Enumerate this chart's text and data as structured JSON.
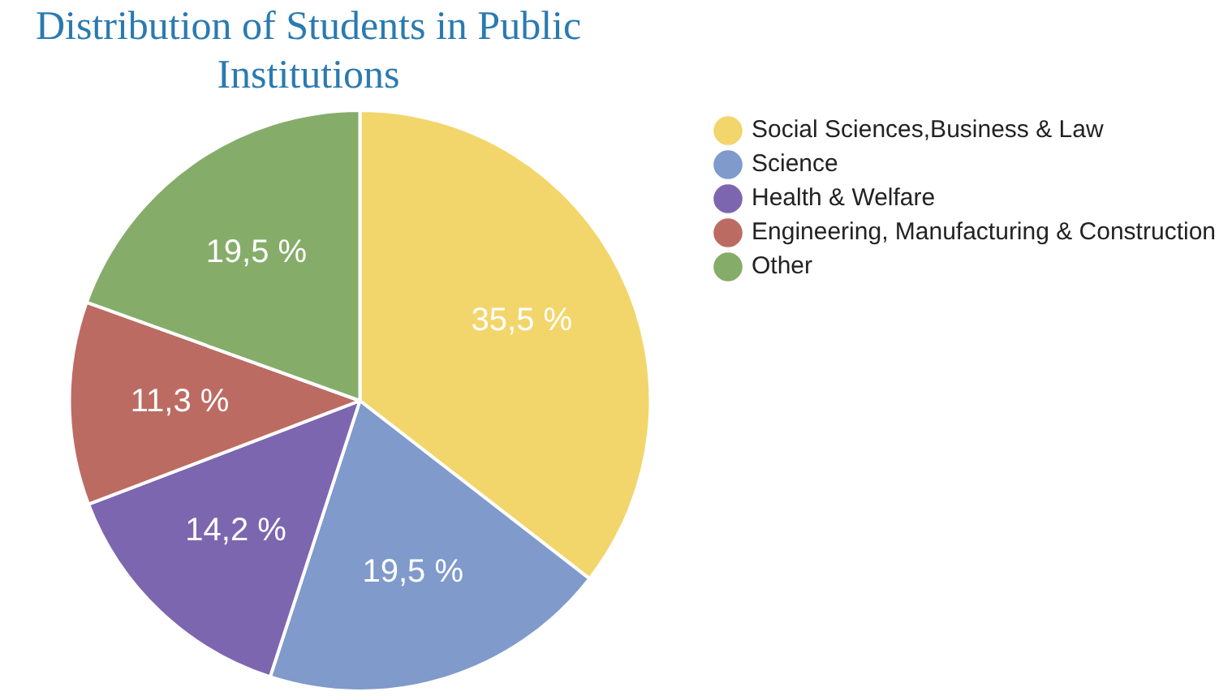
{
  "chart_data": {
    "type": "pie",
    "title": "Distribution of Students in Public Institutions",
    "categories": [
      "Social Sciences,Business & Law",
      "Science",
      "Health & Welfare",
      "Engineering, Manufacturing & Construction",
      "Other"
    ],
    "values": [
      35.5,
      19.5,
      14.2,
      11.3,
      19.5
    ],
    "value_labels": [
      "35,5 %",
      "19,5 %",
      "14,2 %",
      "11,3 %",
      "19,5 %"
    ],
    "colors": [
      "#f2d66b",
      "#7f9acb",
      "#7d66b0",
      "#bc6b63",
      "#86ac6a"
    ],
    "legend": "top right"
  }
}
